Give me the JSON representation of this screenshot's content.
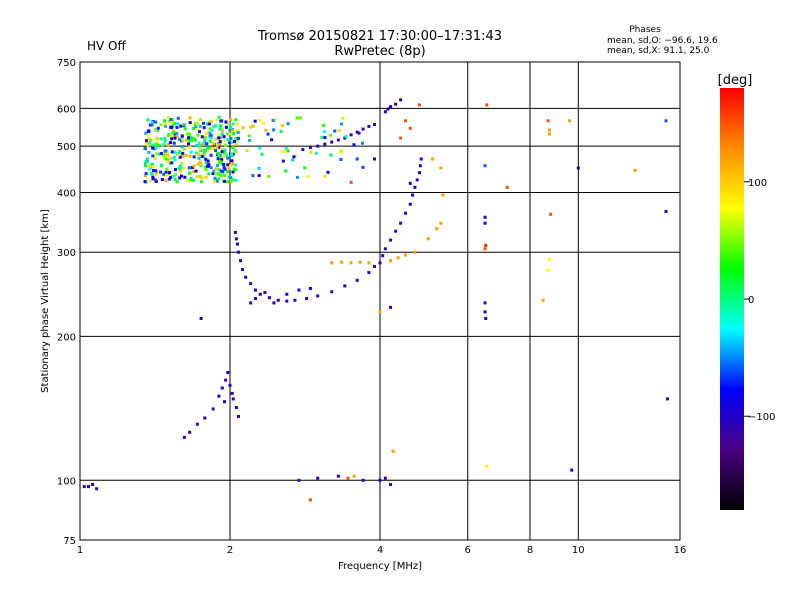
{
  "header": {
    "title_line1": "Tromsø 20150821 17:30:00–17:31:43",
    "title_line2": "RwPretec (8p)",
    "status": "HV Off",
    "status_color": "#e00000",
    "stats": {
      "heading": "Phases",
      "line1": "mean, sd,O: −96.6, 19.6",
      "line2": "mean, sd,X:  91.1, 25.0"
    }
  },
  "colorbar": {
    "label": "[deg]",
    "ticks": [
      "100",
      "0",
      "−100"
    ],
    "tick_values": [
      100,
      0,
      -100
    ],
    "range": [
      -180,
      180
    ],
    "colors": [
      "#000000",
      "#4b0082",
      "#0000ff",
      "#00ffff",
      "#00ff00",
      "#ffff00",
      "#ff8c00",
      "#ff0000"
    ]
  },
  "chart_data": {
    "type": "scatter",
    "title": "Tromsø 20150821 17:30:00–17:31:43",
    "subtitle": "RwPretec (8p)",
    "xlabel": "Frequency [MHz]",
    "ylabel": "Stationary phase Virtual Height [km]",
    "x_scale": "log",
    "y_scale": "log",
    "xlim": [
      1,
      16
    ],
    "ylim": [
      75,
      750
    ],
    "xticks": [
      1,
      2,
      4,
      6,
      8,
      10,
      16
    ],
    "xtick_labels": [
      "1",
      "2",
      "4",
      "6",
      "8",
      "10",
      "16"
    ],
    "yticks": [
      75,
      100,
      200,
      300,
      400,
      500,
      600,
      750
    ],
    "ytick_labels": [
      "75",
      "100",
      "200",
      "300",
      "400",
      "500",
      "600",
      "750"
    ],
    "grid": true,
    "color_axis": "phase [deg]",
    "series": [
      {
        "values": [
          [
            1.02,
            97,
            -100
          ],
          [
            1.04,
            97,
            -100
          ],
          [
            1.06,
            98,
            -100
          ],
          [
            1.08,
            96,
            -100
          ]
        ]
      },
      {
        "values": [
          [
            1.75,
            218,
            -110
          ],
          [
            1.62,
            123,
            -110
          ],
          [
            1.66,
            126,
            -110
          ],
          [
            1.72,
            131,
            -110
          ],
          [
            1.78,
            135,
            -110
          ],
          [
            1.85,
            141,
            -110
          ],
          [
            1.9,
            150,
            -110
          ],
          [
            1.93,
            156,
            -110
          ],
          [
            1.96,
            162,
            -110
          ],
          [
            1.98,
            168,
            -110
          ],
          [
            2.0,
            158,
            -110
          ],
          [
            2.03,
            148,
            -110
          ],
          [
            2.06,
            142,
            -110
          ],
          [
            2.08,
            136,
            -110
          ],
          [
            1.95,
            146,
            -110
          ],
          [
            2.02,
            152,
            -110
          ]
        ]
      },
      {
        "values": [
          [
            2.05,
            330,
            -110
          ],
          [
            2.06,
            320,
            -110
          ],
          [
            2.07,
            312,
            -110
          ],
          [
            2.08,
            300,
            -110
          ],
          [
            2.1,
            288,
            -110
          ],
          [
            2.12,
            276,
            -110
          ],
          [
            2.15,
            266,
            -110
          ],
          [
            2.2,
            258,
            -110
          ],
          [
            2.25,
            250,
            -110
          ],
          [
            2.3,
            245,
            -110
          ],
          [
            2.4,
            241,
            -110
          ],
          [
            2.5,
            238,
            -110
          ],
          [
            2.6,
            237,
            -110
          ],
          [
            2.7,
            238,
            -110
          ],
          [
            2.85,
            240,
            -110
          ],
          [
            3.0,
            243,
            -110
          ],
          [
            3.2,
            248,
            -110
          ],
          [
            3.4,
            255,
            -110
          ],
          [
            3.6,
            262,
            -110
          ],
          [
            3.8,
            272,
            -110
          ],
          [
            3.9,
            280,
            -110
          ],
          [
            2.2,
            235,
            -110
          ],
          [
            2.35,
            247,
            -110
          ],
          [
            2.6,
            245,
            -80
          ],
          [
            2.75,
            250,
            -80
          ],
          [
            2.9,
            252,
            -80
          ],
          [
            2.45,
            235,
            -110
          ],
          [
            2.25,
            240,
            -110
          ]
        ]
      },
      {
        "values": [
          [
            3.2,
            285,
            120
          ],
          [
            3.35,
            286,
            120
          ],
          [
            3.5,
            285,
            120
          ],
          [
            3.65,
            286,
            120
          ],
          [
            3.8,
            285,
            120
          ],
          [
            4.2,
            288,
            120
          ],
          [
            4.35,
            292,
            120
          ],
          [
            4.5,
            296,
            120
          ],
          [
            4.7,
            300,
            120
          ],
          [
            5.0,
            320,
            120
          ],
          [
            5.2,
            336,
            120
          ],
          [
            5.3,
            345,
            120
          ]
        ]
      },
      {
        "values": [
          [
            4.0,
            285,
            -110
          ],
          [
            4.05,
            295,
            -110
          ],
          [
            4.1,
            305,
            -110
          ],
          [
            4.2,
            318,
            -110
          ],
          [
            4.3,
            332,
            -110
          ],
          [
            4.4,
            345,
            -110
          ],
          [
            4.5,
            362,
            -110
          ],
          [
            4.6,
            378,
            -110
          ],
          [
            4.65,
            395,
            -110
          ],
          [
            4.7,
            410,
            -110
          ],
          [
            4.75,
            425,
            -110
          ],
          [
            4.8,
            440,
            -110
          ],
          [
            4.82,
            455,
            -110
          ],
          [
            4.84,
            470,
            -110
          ]
        ]
      },
      {
        "values": [
          [
            2.8,
            492,
            -110
          ],
          [
            2.9,
            497,
            -110
          ],
          [
            3.0,
            500,
            -110
          ],
          [
            3.1,
            505,
            -110
          ],
          [
            3.2,
            510,
            -110
          ],
          [
            3.3,
            515,
            -110
          ],
          [
            3.4,
            520,
            -110
          ],
          [
            3.5,
            528,
            -110
          ],
          [
            3.6,
            535,
            -110
          ],
          [
            3.7,
            543,
            -110
          ],
          [
            3.8,
            550,
            -110
          ],
          [
            3.9,
            555,
            -110
          ]
        ]
      },
      {
        "values": [
          [
            4.1,
            590,
            -110
          ],
          [
            4.15,
            598,
            -110
          ],
          [
            4.2,
            605,
            -110
          ],
          [
            4.3,
            612,
            -110
          ],
          [
            4.4,
            625,
            -110
          ],
          [
            4.8,
            610,
            150
          ]
        ]
      },
      {
        "values": [
          [
            2.75,
            100,
            -110
          ],
          [
            3.0,
            101,
            -110
          ],
          [
            3.3,
            102,
            -100
          ],
          [
            3.45,
            101,
            150
          ],
          [
            3.55,
            102,
            120
          ],
          [
            3.7,
            100,
            -110
          ],
          [
            4.0,
            100,
            -110
          ],
          [
            4.1,
            101,
            -110
          ],
          [
            4.2,
            98,
            -110
          ]
        ]
      },
      {
        "values": [
          [
            2.9,
            91,
            150
          ],
          [
            4.25,
            115,
            120
          ],
          [
            6.55,
            107,
            80
          ],
          [
            6.5,
            235,
            -110
          ],
          [
            6.5,
            225,
            -110
          ],
          [
            6.52,
            218,
            -110
          ],
          [
            6.5,
            305,
            150
          ],
          [
            6.52,
            310,
            170
          ],
          [
            6.5,
            355,
            -110
          ],
          [
            6.5,
            345,
            -80
          ],
          [
            6.5,
            455,
            -60
          ],
          [
            6.55,
            610,
            150
          ],
          [
            7.2,
            410,
            150
          ],
          [
            8.5,
            238,
            120
          ],
          [
            8.7,
            275,
            80
          ],
          [
            8.75,
            290,
            80
          ],
          [
            8.8,
            360,
            150
          ],
          [
            8.75,
            540,
            120
          ],
          [
            8.75,
            530,
            120
          ],
          [
            8.7,
            565,
            150
          ],
          [
            9.6,
            565,
            120
          ],
          [
            9.7,
            105,
            -80
          ],
          [
            10.0,
            450,
            -110
          ],
          [
            13.0,
            445,
            120
          ],
          [
            15.0,
            365,
            -110
          ],
          [
            15.1,
            148,
            -110
          ],
          [
            15.0,
            565,
            -60
          ],
          [
            5.1,
            470,
            120
          ],
          [
            5.3,
            450,
            120
          ],
          [
            5.35,
            395,
            120
          ],
          [
            4.6,
            418,
            -110
          ],
          [
            4.2,
            230,
            -110
          ],
          [
            3.5,
            420,
            150
          ],
          [
            3.6,
            470,
            -60
          ],
          [
            3.9,
            470,
            -110
          ],
          [
            4.4,
            520,
            150
          ],
          [
            4.6,
            545,
            150
          ],
          [
            4.5,
            565,
            150
          ],
          [
            4.0,
            225,
            120
          ]
        ]
      }
    ],
    "scatter_clusters": [
      {
        "x": [
          1.35,
          2.08
        ],
        "y": [
          420,
          575
        ],
        "phases": [
          -110,
          120
        ],
        "description": "dense mixed cluster"
      },
      {
        "x": [
          2.05,
          3.7
        ],
        "y": [
          430,
          575
        ],
        "phases": [
          120,
          -110
        ],
        "description": "sparse mixed points"
      }
    ]
  }
}
